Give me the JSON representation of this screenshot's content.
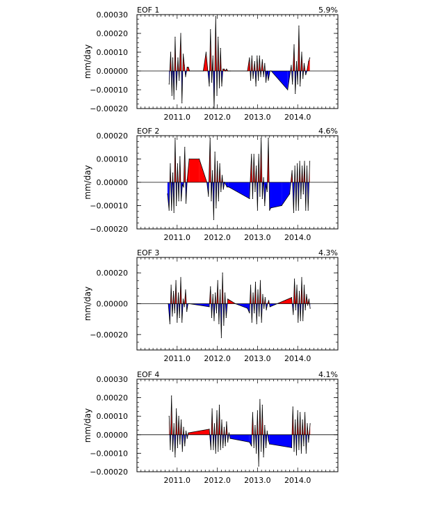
{
  "colors": {
    "positive": "#ff0000",
    "negative": "#0000ff",
    "outline": "#000000",
    "frame": "#000000",
    "background": "#ffffff"
  },
  "chart_data": [
    {
      "type": "area",
      "title": "EOF 1",
      "annotation": "5.9%",
      "ylabel": "mm/day",
      "xlabel": "",
      "xlim": [
        2010.0,
        2015.0
      ],
      "ylim": [
        -0.0002,
        0.0003
      ],
      "x_ticks": [
        2011.0,
        2012.0,
        2013.0,
        2014.0
      ],
      "x_tick_labels": [
        "2011.0",
        "2012.0",
        "2013.0",
        "2014.0"
      ],
      "y_ticks": [
        -0.0002,
        -0.0001,
        0.0,
        0.0001,
        0.0002,
        0.0003
      ],
      "y_tick_labels": [
        "−0.00020",
        "−0.00010",
        "0.00000",
        "0.00010",
        "0.00020",
        "0.00030"
      ],
      "grid": false,
      "x": [
        2010.8,
        2010.84,
        2010.87,
        2010.89,
        2010.92,
        2010.95,
        2010.98,
        2011.02,
        2011.05,
        2011.09,
        2011.12,
        2011.15,
        2011.18,
        2011.21,
        2011.25,
        2011.28,
        2011.31,
        2011.65,
        2011.72,
        2011.8,
        2011.83,
        2011.86,
        2011.89,
        2011.92,
        2011.96,
        2011.99,
        2012.02,
        2012.05,
        2012.08,
        2012.11,
        2012.14,
        2012.17,
        2012.2,
        2012.23,
        2012.26,
        2012.29,
        2012.33,
        2012.75,
        2012.8,
        2012.83,
        2012.86,
        2012.89,
        2012.93,
        2012.96,
        2012.99,
        2013.02,
        2013.05,
        2013.08,
        2013.12,
        2013.15,
        2013.18,
        2013.21,
        2013.24,
        2013.27,
        2013.31,
        2013.34,
        2013.75,
        2013.84,
        2013.87,
        2013.91,
        2013.94,
        2013.97,
        2014.0,
        2014.03,
        2014.06,
        2014.1,
        2014.13,
        2014.16,
        2014.2,
        2014.23,
        2014.27,
        2014.3
      ],
      "values": [
        -7e-05,
        0.0001,
        -0.00013,
        7e-05,
        -0.00015,
        0.00018,
        -0.0001,
        7e-05,
        -5e-05,
        0.0002,
        -0.00017,
        9e-05,
        3e-05,
        -3e-05,
        2e-05,
        2e-05,
        0.0,
        0.0,
        0.0001,
        -8e-05,
        0.00022,
        -6e-05,
        8e-05,
        -0.0002,
        0.00029,
        -0.00013,
        0.00018,
        -9e-05,
        0.00012,
        -8e-05,
        1e-05,
        1e-05,
        0.0,
        1e-05,
        0.0,
        0.0,
        0.0,
        0.0,
        7e-05,
        -5e-05,
        8e-05,
        -4e-05,
        5e-05,
        -8e-05,
        8e-05,
        -5e-05,
        8e-05,
        -3e-05,
        6e-05,
        -3e-05,
        4e-05,
        -6e-05,
        0.0,
        -5e-05,
        0.0,
        0.0,
        -0.0001,
        3e-05,
        -7e-05,
        0.00014,
        -0.00012,
        5e-05,
        -7e-05,
        0.00024,
        -8e-05,
        0.0001,
        -4e-05,
        4e-05,
        -2e-05,
        0.0,
        5e-05,
        7e-05
      ]
    },
    {
      "type": "area",
      "title": "EOF 2",
      "annotation": "4.6%",
      "ylabel": "mm/day",
      "xlabel": "",
      "xlim": [
        2010.0,
        2015.0
      ],
      "ylim": [
        -0.0002,
        0.0002
      ],
      "x_ticks": [
        2011.0,
        2012.0,
        2013.0,
        2014.0
      ],
      "x_tick_labels": [
        "2011.0",
        "2012.0",
        "2013.0",
        "2014.0"
      ],
      "y_ticks": [
        -0.0002,
        -0.0001,
        0.0,
        0.0001,
        0.0002
      ],
      "y_tick_labels": [
        "−0.00020",
        "−0.00010",
        "0.00000",
        "0.00010",
        "0.00020"
      ],
      "grid": false,
      "x": [
        2010.76,
        2010.8,
        2010.83,
        2010.86,
        2010.89,
        2010.92,
        2010.95,
        2010.98,
        2011.01,
        2011.04,
        2011.07,
        2011.1,
        2011.13,
        2011.16,
        2011.19,
        2011.22,
        2011.25,
        2011.3,
        2011.55,
        2011.74,
        2011.78,
        2011.82,
        2011.85,
        2011.88,
        2011.91,
        2011.94,
        2011.97,
        2012.0,
        2012.03,
        2012.06,
        2012.09,
        2012.12,
        2012.15,
        2012.18,
        2012.21,
        2012.24,
        2012.28,
        2012.8,
        2012.85,
        2012.88,
        2012.91,
        2012.94,
        2012.97,
        2013.0,
        2013.03,
        2013.06,
        2013.09,
        2013.12,
        2013.15,
        2013.18,
        2013.21,
        2013.24,
        2013.27,
        2013.3,
        2013.33,
        2013.6,
        2013.8,
        2013.86,
        2013.9,
        2013.93,
        2013.96,
        2013.99,
        2014.02,
        2014.05,
        2014.08,
        2014.11,
        2014.14,
        2014.17,
        2014.2,
        2014.23,
        2014.26,
        2014.3
      ],
      "values": [
        -5e-05,
        -0.00012,
        8e-05,
        -0.00012,
        4e-05,
        -0.00013,
        0.00019,
        -0.0001,
        8e-05,
        -8e-05,
        0.00011,
        -8e-05,
        -1e-05,
        -2e-05,
        0.00015,
        -9e-05,
        1e-05,
        0.0001,
        0.0001,
        0.0,
        -6e-05,
        0.00019,
        -8e-05,
        5e-05,
        -0.00016,
        0.00013,
        -0.00011,
        9e-05,
        -8e-05,
        8e-05,
        -4e-05,
        3e-05,
        -3e-05,
        0.0,
        -1e-05,
        -2e-05,
        -2e-05,
        -7e-05,
        0.00012,
        -7e-05,
        0.00012,
        -4e-05,
        7e-05,
        -0.00012,
        0.00012,
        -6e-05,
        0.00019,
        -7e-05,
        2e-05,
        -0.0001,
        -1e-05,
        -4e-05,
        0.00019,
        -0.00012,
        -0.00011,
        -0.0001,
        -5e-05,
        5e-05,
        -0.00013,
        7e-05,
        -0.00012,
        8e-05,
        -0.00012,
        9e-05,
        -7e-05,
        7e-05,
        -5e-05,
        9e-05,
        -0.00012,
        7e-05,
        -0.00012,
        9e-05
      ]
    },
    {
      "type": "area",
      "title": "EOF 3",
      "annotation": "4.3%",
      "ylabel": "mm/day",
      "xlabel": "",
      "xlim": [
        2010.0,
        2015.0
      ],
      "ylim": [
        -0.0003,
        0.0003
      ],
      "x_ticks": [
        2011.0,
        2012.0,
        2013.0,
        2014.0
      ],
      "x_tick_labels": [
        "2011.0",
        "2012.0",
        "2013.0",
        "2014.0"
      ],
      "y_ticks": [
        -0.0002,
        0.0,
        0.0002
      ],
      "y_tick_labels": [
        "−0.00020",
        "0.00000",
        "0.00020"
      ],
      "grid": false,
      "x": [
        2010.78,
        2010.82,
        2010.85,
        2010.88,
        2010.91,
        2010.94,
        2010.97,
        2011.0,
        2011.03,
        2011.06,
        2011.09,
        2011.12,
        2011.15,
        2011.18,
        2011.21,
        2011.24,
        2011.27,
        2011.3,
        2011.8,
        2011.83,
        2011.86,
        2011.89,
        2011.92,
        2011.95,
        2011.98,
        2012.01,
        2012.04,
        2012.07,
        2012.1,
        2012.13,
        2012.16,
        2012.19,
        2012.22,
        2012.26,
        2012.45,
        2012.75,
        2012.8,
        2012.83,
        2012.86,
        2012.89,
        2012.92,
        2012.95,
        2012.98,
        2013.01,
        2013.04,
        2013.07,
        2013.1,
        2013.13,
        2013.16,
        2013.19,
        2013.22,
        2013.25,
        2013.28,
        2013.31,
        2013.85,
        2013.89,
        2013.92,
        2013.95,
        2013.98,
        2014.01,
        2014.04,
        2014.07,
        2014.1,
        2014.13,
        2014.16,
        2014.19,
        2014.22,
        2014.25,
        2014.28,
        2014.31
      ],
      "values": [
        0.0,
        -0.00013,
        0.00012,
        -8e-05,
        8e-05,
        -6e-05,
        0.00015,
        -0.00012,
        7e-05,
        -9e-05,
        0.00017,
        -0.00012,
        3e-05,
        -2e-05,
        9e-05,
        -5e-05,
        0.0,
        0.0,
        -2e-05,
        0.00011,
        -9e-05,
        6e-05,
        -0.00011,
        7e-05,
        -6e-05,
        0.00015,
        -0.00013,
        9e-05,
        -0.00022,
        0.0002,
        -0.00014,
        7e-05,
        -9e-05,
        3e-05,
        0.0,
        -3e-05,
        -6e-05,
        0.00012,
        -0.00012,
        7e-05,
        -6e-05,
        0.00014,
        -0.00013,
        9e-05,
        -8e-05,
        0.00015,
        -0.00012,
        6e-05,
        -3e-05,
        4e-05,
        -4e-05,
        0.0,
        2e-05,
        -2e-05,
        4e-05,
        -7e-05,
        0.00016,
        -4e-05,
        0.00012,
        -0.00012,
        8e-05,
        -0.00011,
        0.00017,
        -0.00011,
        0.00012,
        -4e-05,
        6e-05,
        -1e-05,
        3e-05,
        -3e-05
      ]
    },
    {
      "type": "area",
      "title": "EOF 4",
      "annotation": "4.1%",
      "ylabel": "mm/day",
      "xlabel": "",
      "xlim": [
        2010.0,
        2015.0
      ],
      "ylim": [
        -0.0002,
        0.0003
      ],
      "x_ticks": [
        2011.0,
        2012.0,
        2013.0,
        2014.0
      ],
      "x_tick_labels": [
        "2011.0",
        "2012.0",
        "2013.0",
        "2014.0"
      ],
      "y_ticks": [
        -0.0002,
        -0.0001,
        0.0,
        0.0001,
        0.0002,
        0.0003
      ],
      "y_tick_labels": [
        "−0.00020",
        "−0.00010",
        "0.00000",
        "0.00010",
        "0.00020",
        "0.00030"
      ],
      "grid": false,
      "x": [
        2010.8,
        2010.83,
        2010.86,
        2010.89,
        2010.92,
        2010.95,
        2010.98,
        2011.01,
        2011.04,
        2011.07,
        2011.1,
        2011.13,
        2011.16,
        2011.19,
        2011.22,
        2011.25,
        2011.28,
        2011.8,
        2011.84,
        2011.87,
        2011.9,
        2011.93,
        2011.96,
        2011.99,
        2012.02,
        2012.05,
        2012.08,
        2012.11,
        2012.14,
        2012.17,
        2012.2,
        2012.23,
        2012.26,
        2012.29,
        2012.32,
        2012.8,
        2012.85,
        2012.88,
        2012.91,
        2012.94,
        2012.97,
        2013.0,
        2013.03,
        2013.06,
        2013.09,
        2013.12,
        2013.15,
        2013.18,
        2013.21,
        2013.24,
        2013.27,
        2013.3,
        2013.85,
        2013.88,
        2013.91,
        2013.94,
        2013.97,
        2014.0,
        2014.03,
        2014.06,
        2014.09,
        2014.12,
        2014.15,
        2014.18,
        2014.21,
        2014.24,
        2014.27,
        2014.31
      ],
      "values": [
        0.0001,
        -8e-05,
        0.00021,
        -9e-05,
        6e-05,
        -0.00012,
        0.00014,
        -7e-05,
        0.0001,
        -5e-05,
        8e-05,
        -9e-05,
        4e-05,
        -6e-05,
        2e-05,
        -2e-05,
        1e-05,
        3e-05,
        -8e-05,
        0.00014,
        -8e-05,
        6e-05,
        -0.0001,
        0.00013,
        -9e-05,
        0.00016,
        -8e-05,
        8e-05,
        -7e-05,
        4e-05,
        -6e-05,
        7e-05,
        -4e-05,
        1e-05,
        -2e-05,
        -4e-05,
        -6e-05,
        0.00012,
        -7e-05,
        5e-05,
        -0.0001,
        0.00013,
        -0.00017,
        0.00019,
        -9e-05,
        0.00016,
        -0.00012,
        5e-05,
        -7e-05,
        2e-05,
        -3e-05,
        -5e-05,
        -7e-05,
        0.00015,
        -9e-05,
        8e-05,
        -0.00011,
        0.00013,
        -8e-05,
        0.00012,
        -0.0001,
        8e-05,
        -6e-05,
        0.00012,
        -0.0001,
        6e-05,
        -4e-05,
        6e-05
      ]
    }
  ]
}
